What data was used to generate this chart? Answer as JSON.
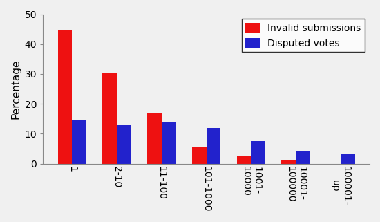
{
  "categories": [
    "1",
    "2-10",
    "11-100",
    "101-1000",
    "1001-\n10000",
    "10001-\n100000",
    "100001-\nup"
  ],
  "invalid_submissions": [
    44.5,
    30.5,
    17.0,
    5.5,
    2.5,
    1.2,
    0.0
  ],
  "disputed_votes": [
    14.5,
    13.0,
    14.0,
    12.0,
    7.5,
    4.0,
    3.5
  ],
  "bar_color_red": "#ee1111",
  "bar_color_blue": "#2222cc",
  "ylabel": "Percentage",
  "ylim": [
    0,
    50
  ],
  "yticks": [
    0,
    10,
    20,
    30,
    40,
    50
  ],
  "legend_labels": [
    "Invalid submissions",
    "Disputed votes"
  ],
  "bar_width": 0.32,
  "label_fontsize": 11,
  "tick_fontsize": 10,
  "legend_fontsize": 10,
  "spine_color": "#888888",
  "bg_color": "#f0f0f0"
}
